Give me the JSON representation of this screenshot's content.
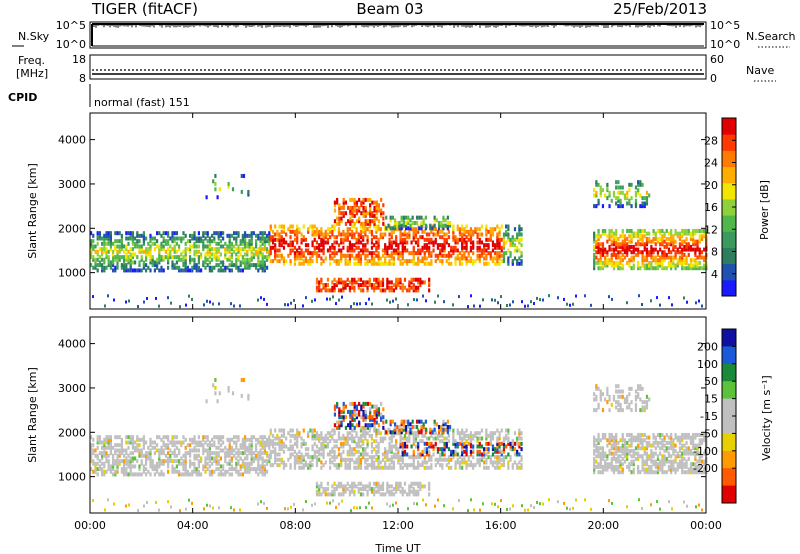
{
  "header": {
    "radar": "TIGER (fitACF)",
    "beam": "Beam 03",
    "date": "25/Feb/2013"
  },
  "status_panels": {
    "nsky": {
      "label": "N.Sky",
      "ticks": [
        "10^5",
        "10^0"
      ],
      "right_label": "N.Search",
      "right_ticks": [
        "10^5",
        "10^0"
      ]
    },
    "freq": {
      "label_line1": "Freq.",
      "label_line2": "[MHz]",
      "ticks": [
        "18",
        "8"
      ],
      "right_label": "Nave",
      "right_ticks": [
        "60",
        "0"
      ]
    },
    "cpid": {
      "label": "CPID",
      "value": "normal (fast) 151"
    }
  },
  "chart_data": [
    {
      "type": "heatmap",
      "parameter": "power",
      "ylabel": "Slant Range [km]",
      "ylim": [
        180,
        4600
      ],
      "yticks": [
        1000,
        2000,
        3000,
        4000
      ],
      "xlabel": "",
      "xlim": [
        "00:00",
        "24:00"
      ],
      "colorbar": {
        "label": "Power [dB]",
        "range": [
          0,
          32
        ],
        "ticks": [
          4,
          8,
          12,
          16,
          20,
          24,
          28
        ],
        "colors": [
          "#1a1aff",
          "#2050b0",
          "#2e7d5e",
          "#3c9a5e",
          "#52b74a",
          "#8fd13c",
          "#f2e600",
          "#ffae00",
          "#ff7a00",
          "#ff3a00",
          "#e00000"
        ]
      }
    },
    {
      "type": "heatmap",
      "parameter": "velocity",
      "ylabel": "Slant Range [km]",
      "ylim": [
        180,
        4600
      ],
      "yticks": [
        1000,
        2000,
        3000,
        4000
      ],
      "xlabel": "Time UT",
      "xlim": [
        "00:00",
        "24:00"
      ],
      "xticks": [
        "00:00",
        "04:00",
        "08:00",
        "12:00",
        "16:00",
        "20:00",
        "00:00"
      ],
      "colorbar": {
        "label": "Velocity [m s⁻¹]",
        "ticks": [
          "200",
          "100",
          "50",
          "15",
          "-15",
          "-50",
          "-100",
          "-200"
        ],
        "colors": [
          "#1010a0",
          "#1a5ad8",
          "#1a8a3a",
          "#5cc23a",
          "#c0c0c0",
          "#c0c0c0",
          "#e6d000",
          "#ff9a00",
          "#ff5a00",
          "#e00000"
        ]
      }
    }
  ]
}
